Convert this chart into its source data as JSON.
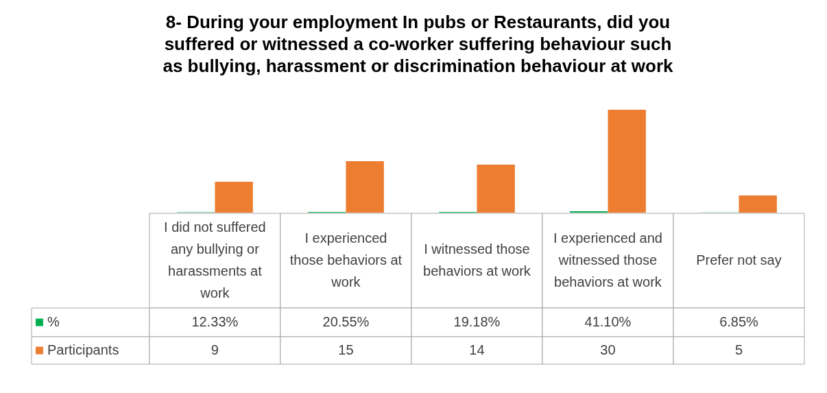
{
  "chart_data": {
    "type": "bar",
    "title": "8- During your employment In pubs or Restaurants, did you suffered or witnessed a co-worker suffering behaviour such as bullying, harassment or discrimination behaviour at work",
    "categories": [
      "I did not suffered any bullying or harassments at work",
      "I experienced those behaviors at work",
      "I witnessed those behaviors at work",
      "I experienced and witnessed those behaviors at work",
      "Prefer not say"
    ],
    "series": [
      {
        "name": "%",
        "color": "#00b050",
        "values": [
          0.1233,
          0.2055,
          0.1918,
          0.411,
          0.0685
        ],
        "value_labels": [
          "12.33%",
          "20.55%",
          "19.18%",
          "41.10%",
          "6.85%"
        ]
      },
      {
        "name": "Participants",
        "color": "#ed7d31",
        "values": [
          9,
          15,
          14,
          30,
          5
        ],
        "value_labels": [
          "9",
          "15",
          "14",
          "30",
          "5"
        ]
      }
    ],
    "legend": "bottom"
  }
}
